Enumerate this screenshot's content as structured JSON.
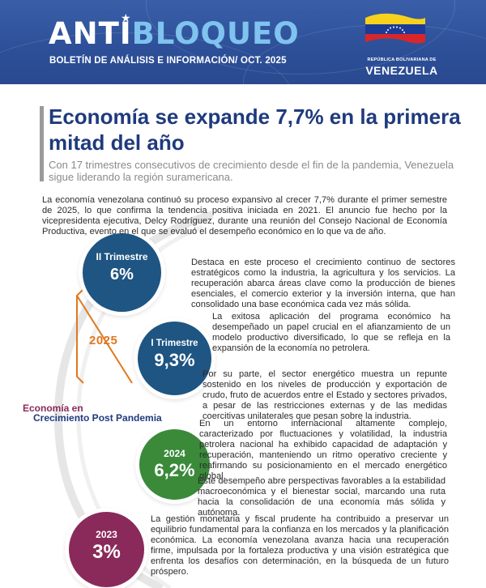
{
  "header": {
    "brand_part1": "ANTI",
    "brand_part2": "BLOQUEO",
    "bulletin": "BOLETÍN DE ANÁLISIS E INFORMACIÓN/ OCT. 2025",
    "republic": "REPÚBLICA BOLIVARIANA DE",
    "country": "VENEZUELA",
    "colors": {
      "banner": "#2c4f98",
      "brand_light": "#7fc3ee",
      "flag_yellow": "#f7d11e",
      "flag_blue": "#1b3b96",
      "flag_red": "#d8262b"
    }
  },
  "article": {
    "title": "Economía se expande 7,7% en la primera mitad del año",
    "subtitle": "Con 17 trimestres consecutivos de crecimiento desde el fin de la pandemia, Venezuela sigue liderando la región suramericana.",
    "paragraphs": [
      "La economía venezolana continuó su proceso expansivo al crecer 7,7% durante el primer semestre de 2025, lo que confirma la tendencia positiva iniciada en 2021. El anuncio fue hecho por la vicepresidenta ejecutiva, Delcy Rodríguez, durante una reunión del Consejo Nacional de Economía Productiva, evento en el que se evaluó el desempeño económico en lo que va de año.",
      "Destaca en este proceso el crecimiento continuo de sectores estratégicos como la industria, la agricultura y los servicios. La recuperación abarca áreas clave como la producción de bienes esenciales, el comercio exterior y la inversión interna, que han consolidado una base económica cada vez más sólida.",
      "La exitosa aplicación del programa económico ha desempeñado un papel crucial en el afianzamiento de un modelo productivo diversificado, lo que se refleja en la expansión de la economía no petrolera.",
      "Por su parte, el sector energético muestra un repunte sostenido en los niveles de producción y exportación de crudo, fruto de acuerdos entre el Estado y sectores privados, a pesar de las restricciones externas y de las medidas coercitivas unilaterales que pesan sobre la industria.",
      "En un entorno internacional altamente complejo, caracterizado por fluctuaciones y volatilidad, la industria petrolera nacional ha exhibido capacidad de adaptación y recuperación, manteniendo un ritmo operativo creciente y reafirmando su posicionamiento en el mercado energético global.",
      "Este desempeño abre perspectivas favorables a la estabilidad macroeconómica y el bienestar social, marcando una ruta hacia la consolidación de una economía más sólida y autónoma.",
      "La gestión monetaria y fiscal prudente ha contribuido a preservar un equilibrio fundamental para la confianza en los mercados y la planificación económica. La economía venezolana avanza hacia una recuperación firme, impulsada por la fortaleza productiva y una visión estratégica que enfrenta los desafíos con determinación, en la búsqueda de un futuro próspero."
    ]
  },
  "timeline": {
    "group_year": "2025",
    "caption_line1": "Economía en",
    "caption_line2": "Crecimiento Post Pandemia",
    "items": [
      {
        "label": "II Trimestre",
        "value": "6%",
        "color": "#1e5582"
      },
      {
        "label": "I Trimestre",
        "value": "9,3%",
        "color": "#1e5582"
      },
      {
        "label": "2024",
        "value": "6,2%",
        "color": "#3a8a3a"
      },
      {
        "label": "2023",
        "value": "3%",
        "color": "#8a2a5a"
      }
    ],
    "colors": {
      "bracket": "#e07820",
      "caption1": "#8a2a5a",
      "caption2": "#1f3a7d"
    }
  }
}
